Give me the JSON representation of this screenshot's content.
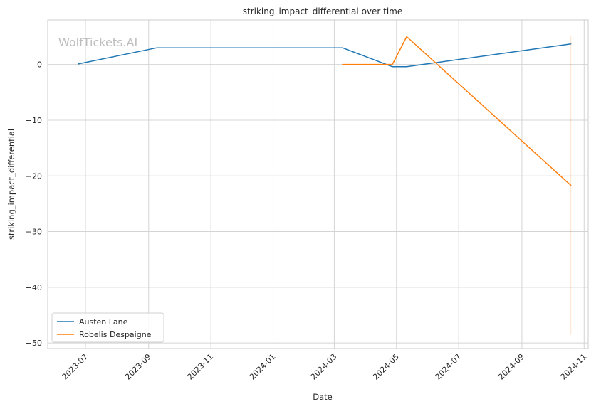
{
  "chart_data": {
    "type": "line",
    "title": "striking_impact_differential over time",
    "xlabel": "Date",
    "ylabel": "striking_impact_differential",
    "watermark": "WolfTickets.AI",
    "xlim": [
      "2023-05-25",
      "2024-11-05"
    ],
    "ylim": [
      -51,
      8
    ],
    "x_ticks": [
      "2023-07-01",
      "2023-09-01",
      "2023-11-01",
      "2024-01-01",
      "2024-03-01",
      "2024-05-01",
      "2024-07-01",
      "2024-09-01",
      "2024-11-01"
    ],
    "x_tick_labels": [
      "2023-07",
      "2023-09",
      "2023-11",
      "2024-01",
      "2024-03",
      "2024-05",
      "2024-07",
      "2024-09",
      "2024-11"
    ],
    "y_ticks": [
      0,
      -10,
      -20,
      -30,
      -40,
      -50
    ],
    "y_tick_labels": [
      "0",
      "−10",
      "−20",
      "−30",
      "−40",
      "−50"
    ],
    "grid": true,
    "legend_position": "lower-left",
    "series": [
      {
        "name": "Austen Lane",
        "color": "#1f77b4",
        "points": [
          {
            "x": "2023-06-24",
            "y": 0.1
          },
          {
            "x": "2023-09-09",
            "y": 3.0
          },
          {
            "x": "2024-03-09",
            "y": 3.0
          },
          {
            "x": "2024-04-27",
            "y": -0.4
          },
          {
            "x": "2024-05-11",
            "y": -0.4
          },
          {
            "x": "2024-10-19",
            "y": 3.7
          }
        ]
      },
      {
        "name": "Robelis Despaigne",
        "color": "#ff7f0e",
        "points": [
          {
            "x": "2024-03-09",
            "y": 0.0
          },
          {
            "x": "2024-04-27",
            "y": 0.0
          },
          {
            "x": "2024-05-11",
            "y": 5.0
          },
          {
            "x": "2024-10-19",
            "y": -21.7
          }
        ],
        "band": {
          "x": "2024-10-19",
          "y_low": -48.5,
          "y_high": 5.2
        }
      }
    ]
  }
}
